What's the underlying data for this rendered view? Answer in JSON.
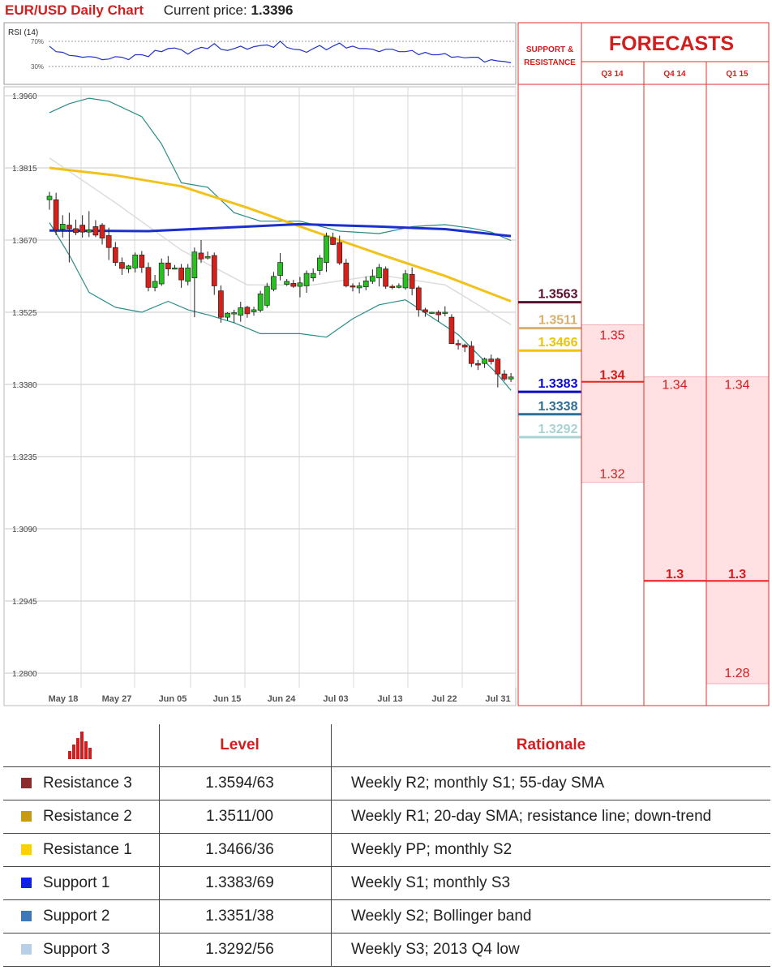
{
  "header": {
    "title": "EUR/USD Daily Chart",
    "current_label": "Current price:",
    "current_value": "1.3396"
  },
  "rsi": {
    "label": "RSI (14)",
    "level_high": "70%",
    "level_low": "30%"
  },
  "sr_panel": {
    "title_line1": "SUPPORT &",
    "title_line2": "RESISTANCE"
  },
  "forecast_panel": {
    "title": "FORECASTS",
    "columns": [
      "Q3 14",
      "Q4 14",
      "Q1 15"
    ]
  },
  "colors": {
    "accent": "#d21e1e",
    "sma_55": "#1c2fd0",
    "sma_20": "#f2c21a",
    "bollinger": "#2a8c86",
    "resistance_3": "#5c1030",
    "resistance_2": "#d9b06a",
    "resistance_1": "#f0c400",
    "support_1": "#0a0ac8",
    "support_2": "#2f6e95",
    "support_3": "#a9d2d2",
    "forecast_fill": "#ffe0e3",
    "candle_up": "#27c21f",
    "candle_down": "#d8201b"
  },
  "chart_data": {
    "type": "candlestick",
    "title": "EUR/USD Daily Chart",
    "y_ticks": [
      "1.3960",
      "1.3815",
      "1.3670",
      "1.3525",
      "1.3380",
      "1.3235",
      "1.3090",
      "1.2945",
      "1.2800"
    ],
    "ylim": [
      1.28,
      1.396
    ],
    "x_ticks": [
      "May 18",
      "May 27",
      "Jun 05",
      "Jun 15",
      "Jun 24",
      "Jul 03",
      "Jul 13",
      "Jul 22",
      "Jul 31"
    ],
    "grid": true,
    "candles": [
      [
        1.3751,
        1.3758,
        1.3731,
        1.3767
      ],
      [
        1.3751,
        1.369,
        1.368,
        1.3765
      ],
      [
        1.3692,
        1.3702,
        1.3675,
        1.372
      ],
      [
        1.37,
        1.3693,
        1.3625,
        1.3725
      ],
      [
        1.3693,
        1.3685,
        1.368,
        1.3711
      ],
      [
        1.37,
        1.3686,
        1.3675,
        1.372
      ],
      [
        1.3686,
        1.369,
        1.3676,
        1.3728
      ],
      [
        1.3697,
        1.368,
        1.3676,
        1.371
      ],
      [
        1.37,
        1.3674,
        1.3661,
        1.3704
      ],
      [
        1.3679,
        1.3655,
        1.363,
        1.3695
      ],
      [
        1.3655,
        1.3625,
        1.3618,
        1.3666
      ],
      [
        1.3625,
        1.3613,
        1.36,
        1.3635
      ],
      [
        1.3612,
        1.3618,
        1.3604,
        1.362
      ],
      [
        1.3614,
        1.364,
        1.3605,
        1.3645
      ],
      [
        1.364,
        1.3615,
        1.3604,
        1.3648
      ],
      [
        1.3615,
        1.3575,
        1.3567,
        1.3625
      ],
      [
        1.3575,
        1.3587,
        1.3567,
        1.36
      ],
      [
        1.3582,
        1.3624,
        1.3578,
        1.3633
      ],
      [
        1.3624,
        1.3612,
        1.3598,
        1.3638
      ],
      [
        1.3614,
        1.3614,
        1.3612,
        1.362
      ],
      [
        1.3614,
        1.359,
        1.3574,
        1.3622
      ],
      [
        1.3587,
        1.3614,
        1.3579,
        1.3622
      ],
      [
        1.3594,
        1.3646,
        1.3515,
        1.3655
      ],
      [
        1.3644,
        1.3632,
        1.3624,
        1.367
      ],
      [
        1.3634,
        1.3637,
        1.3631,
        1.3647
      ],
      [
        1.3639,
        1.3578,
        1.356,
        1.3645
      ],
      [
        1.3568,
        1.3515,
        1.3504,
        1.3579
      ],
      [
        1.3515,
        1.3523,
        1.3508,
        1.3525
      ],
      [
        1.3522,
        1.3524,
        1.3504,
        1.353
      ],
      [
        1.3519,
        1.3534,
        1.3506,
        1.3546
      ],
      [
        1.3535,
        1.3522,
        1.3514,
        1.3538
      ],
      [
        1.3526,
        1.353,
        1.3518,
        1.3536
      ],
      [
        1.3529,
        1.3562,
        1.3525,
        1.3568
      ],
      [
        1.3539,
        1.3577,
        1.3534,
        1.3584
      ],
      [
        1.3571,
        1.3597,
        1.3567,
        1.3606
      ],
      [
        1.3599,
        1.3625,
        1.3589,
        1.3644
      ],
      [
        1.3581,
        1.3587,
        1.3578,
        1.3592
      ],
      [
        1.3583,
        1.3577,
        1.3574,
        1.359
      ],
      [
        1.3577,
        1.3584,
        1.3555,
        1.3596
      ],
      [
        1.3578,
        1.3603,
        1.3564,
        1.3609
      ],
      [
        1.3594,
        1.3603,
        1.3587,
        1.3613
      ],
      [
        1.3609,
        1.3634,
        1.36,
        1.364
      ],
      [
        1.3625,
        1.3678,
        1.3606,
        1.3685
      ],
      [
        1.3675,
        1.3661,
        1.366,
        1.3685
      ],
      [
        1.3665,
        1.3624,
        1.362,
        1.3679
      ],
      [
        1.3624,
        1.3578,
        1.3575,
        1.3632
      ],
      [
        1.3578,
        1.3577,
        1.3567,
        1.3583
      ],
      [
        1.3574,
        1.3578,
        1.3563,
        1.3585
      ],
      [
        1.3576,
        1.3588,
        1.3569,
        1.3597
      ],
      [
        1.3587,
        1.3597,
        1.3582,
        1.3611
      ],
      [
        1.3594,
        1.3615,
        1.3577,
        1.3622
      ],
      [
        1.3612,
        1.3577,
        1.3572,
        1.3617
      ],
      [
        1.3577,
        1.3575,
        1.3571,
        1.3581
      ],
      [
        1.3575,
        1.3578,
        1.3573,
        1.3583
      ],
      [
        1.3574,
        1.3602,
        1.357,
        1.361
      ],
      [
        1.3601,
        1.3573,
        1.3559,
        1.3615
      ],
      [
        1.3574,
        1.353,
        1.3516,
        1.3578
      ],
      [
        1.353,
        1.3525,
        1.3516,
        1.3534
      ],
      [
        1.3523,
        1.3525,
        1.3522,
        1.3526
      ],
      [
        1.3525,
        1.352,
        1.3506,
        1.3529
      ],
      [
        1.3525,
        1.3525,
        1.3517,
        1.3537
      ],
      [
        1.3515,
        1.3462,
        1.3461,
        1.3521
      ],
      [
        1.3462,
        1.346,
        1.345,
        1.347
      ],
      [
        1.3459,
        1.3455,
        1.3445,
        1.3462
      ],
      [
        1.3457,
        1.3422,
        1.3415,
        1.3467
      ],
      [
        1.3422,
        1.3419,
        1.3409,
        1.3429
      ],
      [
        1.3422,
        1.3431,
        1.3413,
        1.3434
      ],
      [
        1.3431,
        1.3426,
        1.342,
        1.344
      ],
      [
        1.3431,
        1.3401,
        1.3374,
        1.3434
      ],
      [
        1.3401,
        1.3391,
        1.3387,
        1.3409
      ],
      [
        1.3391,
        1.3395,
        1.3385,
        1.3403
      ]
    ],
    "indicators": {
      "sma_55": [
        [
          0,
          1.3689
        ],
        [
          15,
          1.3688
        ],
        [
          38,
          1.3702
        ],
        [
          50,
          1.3697
        ],
        [
          60,
          1.3692
        ],
        [
          70,
          1.3678
        ]
      ],
      "sma_20": [
        [
          0,
          1.3815
        ],
        [
          10,
          1.38
        ],
        [
          20,
          1.3778
        ],
        [
          30,
          1.3735
        ],
        [
          40,
          1.3688
        ],
        [
          50,
          1.3642
        ],
        [
          60,
          1.3598
        ],
        [
          70,
          1.3547
        ]
      ],
      "bollinger_upper": [
        [
          0,
          1.3926
        ],
        [
          3,
          1.3944
        ],
        [
          6,
          1.3955
        ],
        [
          9,
          1.3949
        ],
        [
          14,
          1.3918
        ],
        [
          17,
          1.3863
        ],
        [
          20,
          1.3785
        ],
        [
          24,
          1.3776
        ],
        [
          28,
          1.3725
        ],
        [
          32,
          1.3708
        ],
        [
          38,
          1.3708
        ],
        [
          44,
          1.3688
        ],
        [
          50,
          1.3683
        ],
        [
          55,
          1.3697
        ],
        [
          60,
          1.3701
        ],
        [
          64,
          1.3694
        ],
        [
          67,
          1.3686
        ],
        [
          70,
          1.3669
        ]
      ],
      "bollinger_lower": [
        [
          0,
          1.3705
        ],
        [
          3,
          1.364
        ],
        [
          6,
          1.3565
        ],
        [
          10,
          1.3535
        ],
        [
          14,
          1.3525
        ],
        [
          18,
          1.3547
        ],
        [
          21,
          1.353
        ],
        [
          24,
          1.352
        ],
        [
          28,
          1.3504
        ],
        [
          32,
          1.3482
        ],
        [
          38,
          1.3482
        ],
        [
          42,
          1.3475
        ],
        [
          46,
          1.3512
        ],
        [
          50,
          1.354
        ],
        [
          54,
          1.355
        ],
        [
          58,
          1.3515
        ],
        [
          62,
          1.348
        ],
        [
          65,
          1.344
        ],
        [
          68,
          1.34
        ],
        [
          70,
          1.3368
        ]
      ],
      "sma_slow_grey": [
        [
          0,
          1.3835
        ],
        [
          10,
          1.3745
        ],
        [
          20,
          1.365
        ],
        [
          30,
          1.358
        ],
        [
          40,
          1.358
        ],
        [
          50,
          1.36
        ],
        [
          60,
          1.358
        ],
        [
          70,
          1.35
        ]
      ],
      "rsi": [
        62,
        53,
        52,
        47,
        46,
        44,
        45,
        44,
        40,
        41,
        45,
        44,
        40,
        48,
        48,
        45,
        55,
        53,
        58,
        59,
        56,
        49,
        56,
        60,
        58,
        66,
        57,
        55,
        58,
        62,
        57,
        61,
        63,
        64,
        60,
        70,
        60,
        57,
        56,
        52,
        58,
        63,
        56,
        62,
        67,
        59,
        62,
        58,
        58,
        57,
        53,
        57,
        57,
        53,
        53,
        55,
        48,
        52,
        48,
        48,
        50,
        44,
        45,
        43,
        44,
        44,
        36,
        40,
        38,
        37,
        35
      ]
    },
    "sr_levels": [
      {
        "name": "Resistance 3",
        "value": "1.3563",
        "y": 1.3563
      },
      {
        "name": "Resistance 2",
        "value": "1.3511",
        "y": 1.3511
      },
      {
        "name": "Resistance 1",
        "value": "1.3466",
        "y": 1.3466
      },
      {
        "name": "Support 1",
        "value": "1.3383",
        "y": 1.3383
      },
      {
        "name": "Support 2",
        "value": "1.3338",
        "y": 1.3338
      },
      {
        "name": "Support 3",
        "value": "1.3292",
        "y": 1.3292
      }
    ],
    "forecasts": [
      {
        "quarter": "Q3 14",
        "high": "1.35",
        "median": "1.34",
        "low": "1.32"
      },
      {
        "quarter": "Q4 14",
        "high": "1.34",
        "median": "1.3",
        "low": ""
      },
      {
        "quarter": "Q1 15",
        "high": "1.34",
        "median": "1.3",
        "low": "1.28"
      }
    ]
  },
  "table": {
    "headers": {
      "level": "Level",
      "rationale": "Rationale"
    },
    "rows": [
      {
        "name": "Resistance 3",
        "color": "#8b2c2c",
        "level": "1.3594/63",
        "rationale": "Weekly R2; monthly S1; 55-day SMA"
      },
      {
        "name": "Resistance 2",
        "color": "#c79a12",
        "level": "1.3511/00",
        "rationale": "Weekly R1; 20-day SMA; resistance line; down-trend"
      },
      {
        "name": "Resistance 1",
        "color": "#ffd000",
        "level": "1.3466/36",
        "rationale": "Weekly PP; monthly S2"
      },
      {
        "name": "Support 1",
        "color": "#1020e0",
        "level": "1.3383/69",
        "rationale": "Weekly S1; monthly S3"
      },
      {
        "name": "Support 2",
        "color": "#3d78b8",
        "level": "1.3351/38",
        "rationale": "Weekly S2; Bollinger band"
      },
      {
        "name": "Support 3",
        "color": "#b8cfe8",
        "level": "1.3292/56",
        "rationale": "Weekly S3; 2013 Q4 low"
      }
    ]
  }
}
